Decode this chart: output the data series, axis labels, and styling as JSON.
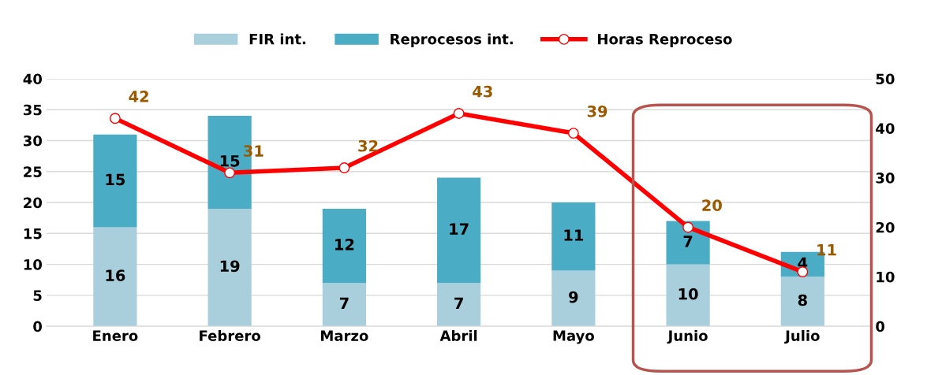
{
  "chart_data": {
    "type": "bar",
    "stacked": true,
    "categories": [
      "Enero",
      "Febrero",
      "Marzo",
      "Abril",
      "Mayo",
      "Junio",
      "Julio"
    ],
    "series": [
      {
        "name": "FIR int.",
        "color": "#a9cfdc",
        "values": [
          16,
          19,
          7,
          7,
          9,
          10,
          8
        ]
      },
      {
        "name": "Reprocesos int.",
        "color": "#4bacc6",
        "values": [
          15,
          15,
          12,
          17,
          11,
          7,
          4
        ]
      },
      {
        "name": "Horas Reproceso",
        "type": "line",
        "axis": "y2",
        "color": "#ff0000",
        "marker": "circle",
        "values": [
          42,
          31,
          32,
          43,
          39,
          20,
          11
        ]
      }
    ],
    "ylim": [
      0,
      40
    ],
    "yticks": [
      0,
      5,
      10,
      15,
      20,
      25,
      30,
      35,
      40
    ],
    "y2lim": [
      0,
      50
    ],
    "y2ticks": [
      0,
      10,
      20,
      30,
      40,
      50
    ],
    "grid": "y",
    "legend": "top",
    "data_labels": true
  }
}
